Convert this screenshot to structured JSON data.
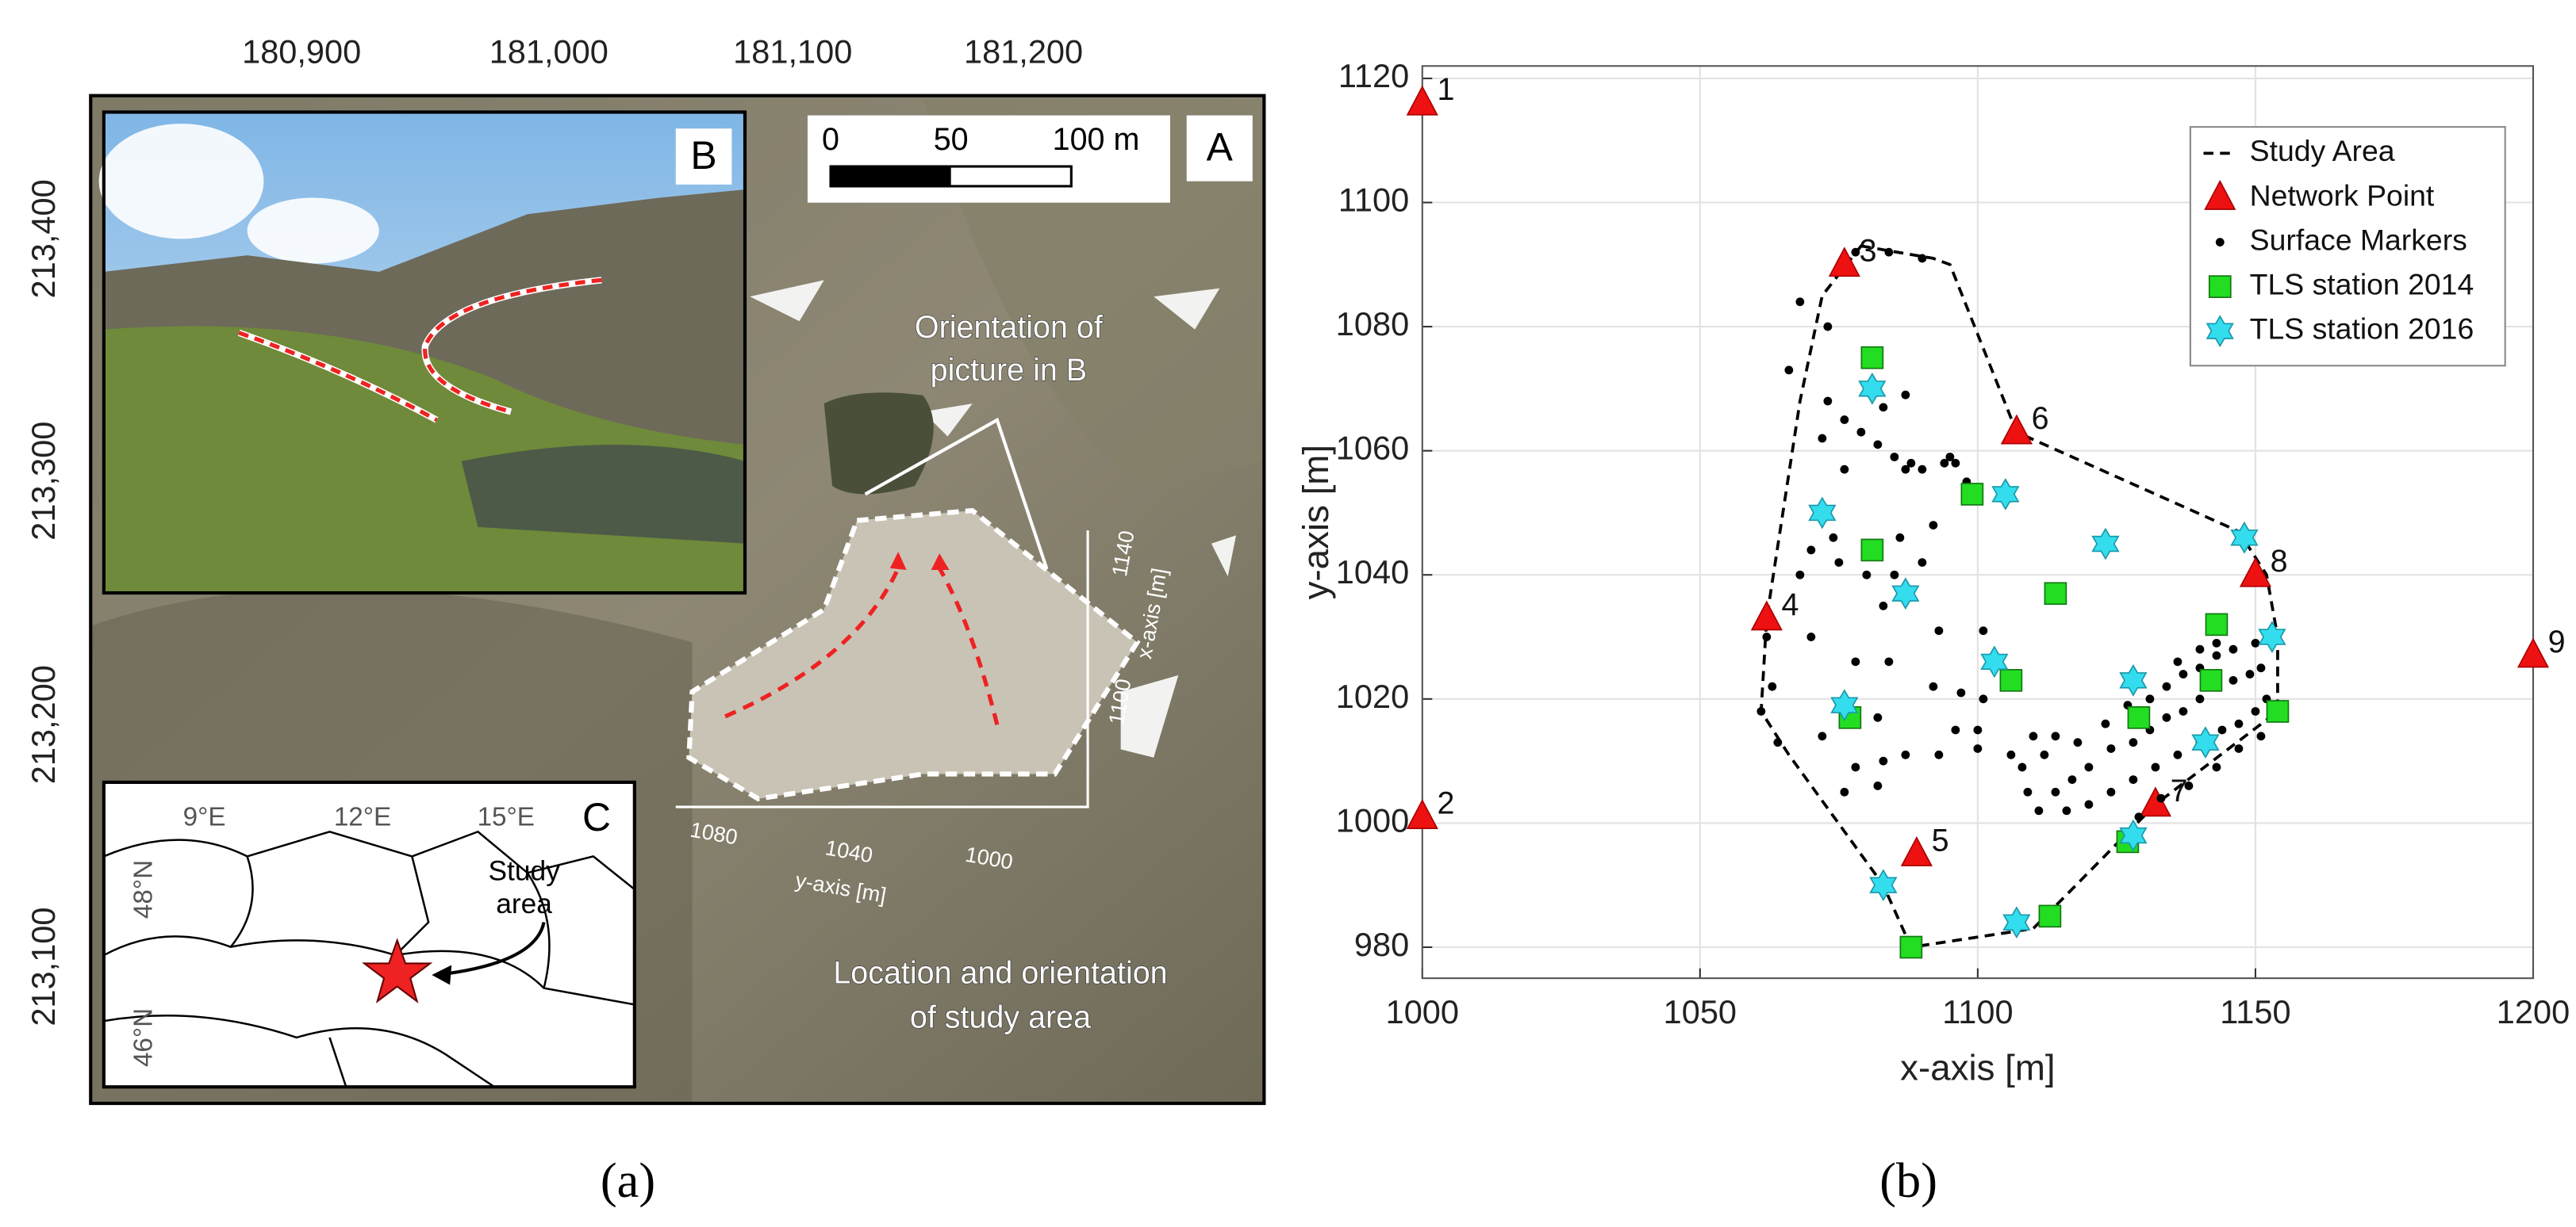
{
  "map": {
    "xticks": [
      "180,900",
      "181,000",
      "181,100",
      "181,200"
    ],
    "yticks": [
      "213,400",
      "213,300",
      "213,200",
      "213,100"
    ],
    "panel_labels": [
      "A",
      "B",
      "C"
    ],
    "scale_bar": [
      "0",
      "50",
      "100 m"
    ],
    "orientation_note": [
      "Orientation of",
      "picture in B"
    ],
    "location_note": [
      "Location and orientation",
      "of study area"
    ],
    "local_axes": {
      "x_ticks": [
        "1140",
        "1100"
      ],
      "x_label": "x-axis [m]",
      "y_ticks": [
        "1080",
        "1040",
        "1000"
      ],
      "y_label": "y-axis [m]"
    },
    "inset_c": {
      "lon": [
        "9°E",
        "12°E",
        "15°E"
      ],
      "lat": [
        "48°N",
        "46°N"
      ],
      "label": [
        "Study",
        "area"
      ]
    },
    "caption": "(a)"
  },
  "chart_data": {
    "type": "scatter",
    "caption": "(b)",
    "xlabel": "x-axis [m]",
    "ylabel": "y-axis [m]",
    "xlim": [
      1000,
      1200
    ],
    "ylim": [
      975,
      1122
    ],
    "xticks": [
      1000,
      1050,
      1100,
      1150,
      1200
    ],
    "yticks": [
      980,
      1000,
      1020,
      1040,
      1060,
      1080,
      1100,
      1120
    ],
    "grid": true,
    "legend": "upper right",
    "series": [
      {
        "name": "Study Area",
        "color": "#000000",
        "marker": "line",
        "x": [
          1079,
          1092,
          1095,
          1107,
          1147,
          1152,
          1154,
          1154,
          1132,
          1110,
          1088,
          1083,
          1066,
          1061,
          1062,
          1068,
          1072
        ],
        "y": [
          1093,
          1091,
          1090,
          1063,
          1047,
          1040,
          1030,
          1018,
          1003,
          983,
          980,
          990,
          1011,
          1018,
          1033,
          1068,
          1085
        ]
      },
      {
        "name": "Network Point",
        "color": "#ee1111",
        "marker": "triangle",
        "x": [
          1000,
          1000,
          1076,
          1062,
          1089,
          1107,
          1132,
          1150,
          1200
        ],
        "y": [
          1116,
          1001,
          1090,
          1033,
          995,
          1063,
          1003,
          1040,
          1027
        ],
        "labels": [
          "1",
          "2",
          "3",
          "4",
          "5",
          "6",
          "7",
          "8",
          "9"
        ]
      },
      {
        "name": "Surface Markers",
        "color": "#000000",
        "marker": "dot",
        "x": [
          1078,
          1084,
          1090,
          1068,
          1073,
          1066,
          1087,
          1073,
          1083,
          1076,
          1072,
          1079,
          1082,
          1085,
          1088,
          1094,
          1095,
          1096,
          1090,
          1087,
          1098,
          1076,
          1092,
          1086,
          1074,
          1070,
          1075,
          1068,
          1080,
          1085,
          1090,
          1083,
          1093,
          1070,
          1062,
          1101,
          1084,
          1078,
          1063,
          1092,
          1097,
          1101,
          1082,
          1061,
          1072,
          1083,
          1096,
          1100,
          1100,
          1093,
          1087,
          1078,
          1076,
          1082,
          1064,
          1106,
          1108,
          1112,
          1110,
          1114,
          1109,
          1111,
          1114,
          1117,
          1120,
          1124,
          1128,
          1131,
          1134,
          1137,
          1140,
          1143,
          1146,
          1149,
          1151,
          1118,
          1123,
          1127,
          1131,
          1134,
          1137,
          1140,
          1143,
          1146,
          1150,
          1136,
          1140,
          1143,
          1120,
          1124,
          1128,
          1132,
          1136,
          1140,
          1144,
          1147,
          1150,
          1152,
          1129,
          1133,
          1138,
          1143,
          1147,
          1151,
          1116
        ],
        "y": [
          1092,
          1092,
          1091,
          1084,
          1080,
          1073,
          1069,
          1068,
          1067,
          1065,
          1062,
          1063,
          1061,
          1059,
          1058,
          1058,
          1059,
          1058,
          1057,
          1057,
          1055,
          1057,
          1048,
          1046,
          1046,
          1044,
          1042,
          1040,
          1040,
          1040,
          1042,
          1035,
          1031,
          1030,
          1030,
          1031,
          1026,
          1026,
          1022,
          1022,
          1021,
          1020,
          1017,
          1018,
          1014,
          1010,
          1015,
          1015,
          1012,
          1011,
          1011,
          1009,
          1005,
          1006,
          1013,
          1011,
          1009,
          1011,
          1014,
          1014,
          1005,
          1002,
          1005,
          1007,
          1009,
          1012,
          1013,
          1015,
          1017,
          1018,
          1020,
          1022,
          1023,
          1024,
          1025,
          1013,
          1016,
          1019,
          1020,
          1022,
          1024,
          1025,
          1027,
          1028,
          1029,
          1026,
          1028,
          1029,
          1003,
          1005,
          1007,
          1009,
          1011,
          1013,
          1015,
          1016,
          1018,
          1020,
          1001,
          1004,
          1006,
          1009,
          1012,
          1014,
          1002
        ]
      },
      {
        "name": "TLS station 2014",
        "color": "#22dd22",
        "marker": "square",
        "x": [
          1081,
          1099,
          1081,
          1114,
          1143,
          1106,
          1142,
          1129,
          1154,
          1077,
          1127,
          1113,
          1088
        ],
        "y": [
          1075,
          1053,
          1044,
          1037,
          1032,
          1023,
          1023,
          1017,
          1018,
          1017,
          997,
          985,
          980
        ]
      },
      {
        "name": "TLS station 2016",
        "color": "#33ddee",
        "marker": "star",
        "x": [
          1081,
          1105,
          1072,
          1123,
          1148,
          1087,
          1103,
          1153,
          1128,
          1076,
          1141,
          1128,
          1083,
          1107
        ],
        "y": [
          1070,
          1053,
          1050,
          1045,
          1046,
          1037,
          1026,
          1030,
          1023,
          1019,
          1013,
          998,
          990,
          984
        ]
      }
    ]
  }
}
